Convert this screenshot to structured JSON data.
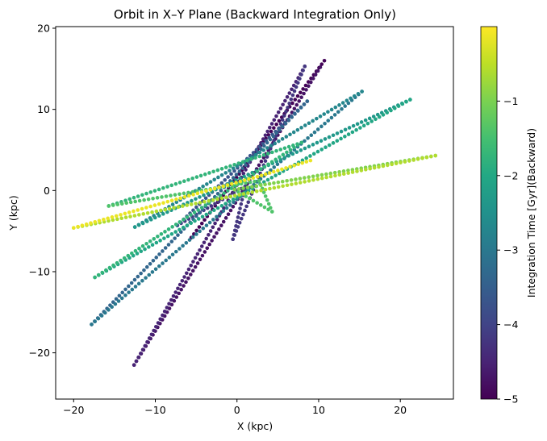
{
  "chart_data": {
    "type": "scatter",
    "title": "Orbit in X–Y Plane (Backward Integration Only)",
    "xlabel": "X (kpc)",
    "ylabel": "Y (kpc)",
    "xlim": [
      -22.2,
      26.5
    ],
    "ylim": [
      -25.7,
      20.2
    ],
    "xticks": [
      -20,
      -10,
      0,
      10,
      20
    ],
    "yticks": [
      -20,
      -10,
      0,
      10,
      20
    ],
    "xtick_labels": [
      "−20",
      "−10",
      "0",
      "10",
      "20"
    ],
    "ytick_labels": [
      "−20",
      "−10",
      "0",
      "10",
      "20"
    ],
    "grid": false,
    "legend": "none",
    "colormap": "viridis",
    "colorbar": {
      "label": "Integration Time [Gyr](Backward)",
      "range": [
        -5,
        0
      ],
      "ticks": [
        -5,
        -4,
        -3,
        -2,
        -1
      ],
      "tick_labels": [
        "−5",
        "−4",
        "−3",
        "−2",
        "−1"
      ]
    },
    "orbit_segments": [
      {
        "t": -4.95,
        "points": [
          [
            -5.6,
            -5.8
          ],
          [
            10.7,
            16.0
          ]
        ]
      },
      {
        "t": -4.75,
        "points": [
          [
            10.2,
            15.2
          ],
          [
            -12.6,
            -21.5
          ]
        ]
      },
      {
        "t": -4.5,
        "points": [
          [
            -12.6,
            -21.5
          ],
          [
            8.3,
            15.3
          ]
        ]
      },
      {
        "t": -4.2,
        "points": [
          [
            8.3,
            15.3
          ],
          [
            -0.5,
            -6.0
          ],
          [
            1.0,
            0.5
          ],
          [
            -7.3,
            -4.3
          ]
        ]
      },
      {
        "t": -3.7,
        "points": [
          [
            -7.3,
            -4.3
          ],
          [
            8.6,
            11.0
          ]
        ]
      },
      {
        "t": -3.35,
        "points": [
          [
            8.6,
            11.0
          ],
          [
            -17.8,
            -16.5
          ]
        ]
      },
      {
        "t": -3.0,
        "points": [
          [
            -17.8,
            -16.5
          ],
          [
            15.3,
            12.2
          ]
        ]
      },
      {
        "t": -2.7,
        "points": [
          [
            15.3,
            12.2
          ],
          [
            -12.5,
            -4.5
          ]
        ]
      },
      {
        "t": -2.35,
        "points": [
          [
            -12.5,
            -4.5
          ],
          [
            21.2,
            11.2
          ]
        ]
      },
      {
        "t": -2.05,
        "points": [
          [
            21.2,
            11.2
          ],
          [
            -17.4,
            -10.7
          ]
        ]
      },
      {
        "t": -1.75,
        "points": [
          [
            -17.4,
            -10.7
          ],
          [
            7.9,
            5.9
          ],
          [
            -15.7,
            -1.9
          ]
        ]
      },
      {
        "t": -1.4,
        "points": [
          [
            -15.7,
            -1.9
          ],
          [
            2.7,
            1.2
          ],
          [
            4.3,
            -2.6
          ],
          [
            -0.3,
            0.1
          ]
        ]
      },
      {
        "t": -0.95,
        "points": [
          [
            -0.3,
            0.1
          ],
          [
            24.3,
            4.3
          ]
        ]
      },
      {
        "t": -0.6,
        "points": [
          [
            24.3,
            4.3
          ],
          [
            -20.0,
            -4.6
          ]
        ]
      },
      {
        "t": -0.15,
        "points": [
          [
            -20.0,
            -4.6
          ],
          [
            2.5,
            1.7
          ],
          [
            9.0,
            3.7
          ]
        ]
      }
    ]
  }
}
